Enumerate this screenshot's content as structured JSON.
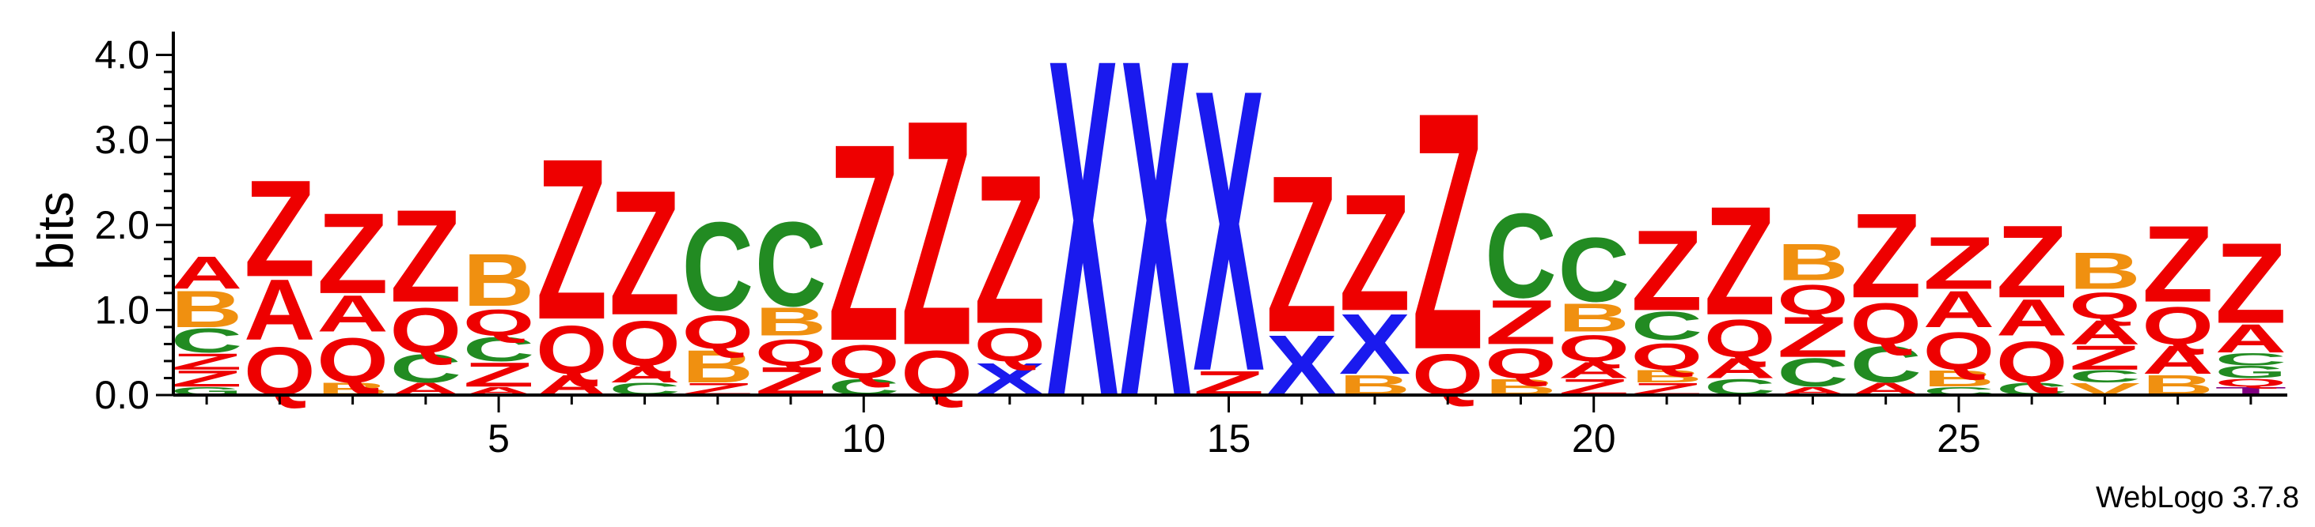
{
  "chart_data": {
    "type": "sequence_logo",
    "ylabel": "bits",
    "ylim": [
      0,
      4.2
    ],
    "yticks": [
      "0.0",
      "1.0",
      "2.0",
      "3.0",
      "4.0"
    ],
    "xticks": [
      5,
      10,
      15,
      20,
      25
    ],
    "n_positions": 29,
    "credit": "WebLogo 3.7.8",
    "colors": {
      "Z": "#ee0000",
      "Q": "#ee0000",
      "A": "#ee0000",
      "X": "#1a1aee",
      "C": "#228b22",
      "B": "#f09010",
      "T": "#800080",
      "G": "#228b22",
      "V": "#f09010"
    },
    "positions": [
      [
        [
          "G",
          0.1
        ],
        [
          "Z",
          0.2
        ],
        [
          "Z",
          0.2
        ],
        [
          "C",
          0.3
        ],
        [
          "B",
          0.45
        ],
        [
          "A",
          0.4
        ]
      ],
      [
        [
          "Q",
          0.65
        ],
        [
          "A",
          0.75
        ],
        [
          "Z",
          1.2
        ]
      ],
      [
        [
          "B",
          0.15
        ],
        [
          "Q",
          0.6
        ],
        [
          "A",
          0.45
        ],
        [
          "Z",
          1.0
        ]
      ],
      [
        [
          "A",
          0.15
        ],
        [
          "C",
          0.35
        ],
        [
          "Q",
          0.6
        ],
        [
          "Z",
          1.15
        ]
      ],
      [
        [
          "A",
          0.1
        ],
        [
          "Z",
          0.3
        ],
        [
          "C",
          0.3
        ],
        [
          "Q",
          0.35
        ],
        [
          "B",
          0.65
        ]
      ],
      [
        [
          "A",
          0.25
        ],
        [
          "Q",
          0.65
        ],
        [
          "Z",
          2.0
        ]
      ],
      [
        [
          "C",
          0.15
        ],
        [
          "A",
          0.2
        ],
        [
          "Q",
          0.6
        ],
        [
          "Z",
          1.55
        ]
      ],
      [
        [
          "Z",
          0.15
        ],
        [
          "B",
          0.4
        ],
        [
          "Q",
          0.45
        ],
        [
          "C",
          1.1
        ]
      ],
      [
        [
          "Z",
          0.35
        ],
        [
          "Q",
          0.35
        ],
        [
          "B",
          0.35
        ],
        [
          "C",
          1.05
        ]
      ],
      [
        [
          "C",
          0.2
        ],
        [
          "Q",
          0.45
        ],
        [
          "Z",
          2.45
        ]
      ],
      [
        [
          "Q",
          0.6
        ],
        [
          "Z",
          2.8
        ]
      ],
      [
        [
          "X",
          0.4
        ],
        [
          "Q",
          0.45
        ],
        [
          "Z",
          1.85
        ]
      ],
      [
        [
          "X",
          4.2
        ]
      ],
      [
        [
          "X",
          4.2
        ]
      ],
      [
        [
          "Z",
          0.3
        ],
        [
          "X",
          3.5
        ]
      ],
      [
        [
          "X",
          0.75
        ],
        [
          "Z",
          1.95
        ]
      ],
      [
        [
          "B",
          0.25
        ],
        [
          "X",
          0.75
        ],
        [
          "Z",
          1.45
        ]
      ],
      [
        [
          "Q",
          0.55
        ],
        [
          "Z",
          2.95
        ]
      ],
      [
        [
          "B",
          0.2
        ],
        [
          "Q",
          0.4
        ],
        [
          "Z",
          0.55
        ],
        [
          "C",
          1.05
        ]
      ],
      [
        [
          "Z",
          0.2
        ],
        [
          "A",
          0.2
        ],
        [
          "Q",
          0.35
        ],
        [
          "B",
          0.35
        ],
        [
          "C",
          0.8
        ]
      ],
      [
        [
          "Z",
          0.15
        ],
        [
          "B",
          0.15
        ],
        [
          "Q",
          0.35
        ],
        [
          "C",
          0.35
        ],
        [
          "Z",
          1.0
        ]
      ],
      [
        [
          "C",
          0.2
        ],
        [
          "A",
          0.25
        ],
        [
          "Q",
          0.5
        ],
        [
          "Z",
          1.35
        ]
      ],
      [
        [
          "A",
          0.1
        ],
        [
          "C",
          0.35
        ],
        [
          "Z",
          0.5
        ],
        [
          "Q",
          0.4
        ],
        [
          "B",
          0.45
        ]
      ],
      [
        [
          "A",
          0.15
        ],
        [
          "C",
          0.45
        ],
        [
          "Q",
          0.55
        ],
        [
          "Z",
          1.05
        ]
      ],
      [
        [
          "C",
          0.1
        ],
        [
          "B",
          0.2
        ],
        [
          "Q",
          0.5
        ],
        [
          "A",
          0.45
        ],
        [
          "Z",
          0.65
        ]
      ],
      [
        [
          "C",
          0.15
        ],
        [
          "Q",
          0.55
        ],
        [
          "A",
          0.45
        ],
        [
          "Z",
          0.9
        ]
      ],
      [
        [
          "V",
          0.15
        ],
        [
          "C",
          0.15
        ],
        [
          "Z",
          0.3
        ],
        [
          "A",
          0.3
        ],
        [
          "Q",
          0.35
        ],
        [
          "B",
          0.45
        ]
      ],
      [
        [
          "B",
          0.25
        ],
        [
          "A",
          0.35
        ],
        [
          "Q",
          0.5
        ],
        [
          "Z",
          0.95
        ]
      ],
      [
        [
          "T",
          0.1
        ],
        [
          "Q",
          0.1
        ],
        [
          "G",
          0.15
        ],
        [
          "C",
          0.15
        ],
        [
          "A",
          0.35
        ],
        [
          "Z",
          1.0
        ]
      ]
    ]
  }
}
